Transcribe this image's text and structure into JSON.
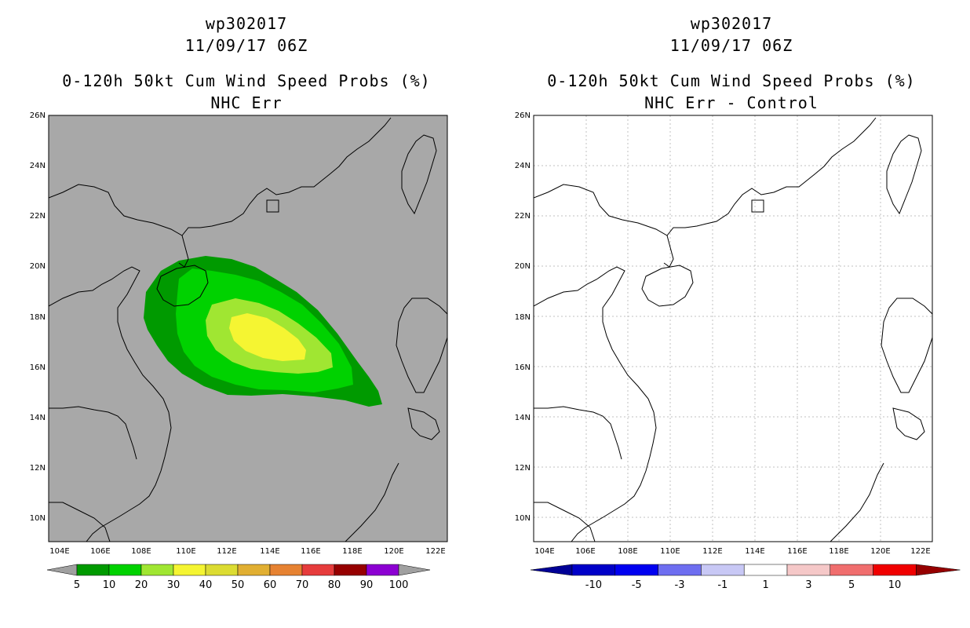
{
  "left_panel": {
    "title_lines": [
      "wp302017",
      "11/09/17 06Z",
      "0-120h 50kt Cum Wind Speed Probs (%)",
      "NHC Err"
    ],
    "lat_labels": [
      "26N",
      "24N",
      "22N",
      "20N",
      "18N",
      "16N",
      "14N",
      "12N",
      "10N"
    ],
    "lon_labels": [
      "104E",
      "106E",
      "108E",
      "110E",
      "112E",
      "114E",
      "116E",
      "118E",
      "120E",
      "122E"
    ],
    "colorbar": {
      "colors": [
        "#009a00",
        "#00d200",
        "#a0e632",
        "#f5f532",
        "#dcdc32",
        "#e1af32",
        "#e68232",
        "#e63c3c",
        "#960000",
        "#8c00d2"
      ],
      "end_color": "#a0a0a0",
      "labels": [
        "5",
        "10",
        "20",
        "30",
        "40",
        "50",
        "60",
        "70",
        "80",
        "90",
        "100"
      ]
    },
    "background_color": "#a8a8a8"
  },
  "right_panel": {
    "title_lines": [
      "wp302017",
      "11/09/17 06Z",
      "0-120h 50kt Cum Wind Speed Probs (%)",
      "NHC Err - Control"
    ],
    "lat_labels": [
      "26N",
      "24N",
      "22N",
      "20N",
      "18N",
      "16N",
      "14N",
      "12N",
      "10N"
    ],
    "lon_labels": [
      "104E",
      "106E",
      "108E",
      "110E",
      "112E",
      "114E",
      "116E",
      "118E",
      "120E",
      "122E"
    ],
    "colorbar": {
      "colors": [
        "#0000c8",
        "#0000f0",
        "#6e6ef0",
        "#c8c8f5",
        "#ffffff",
        "#f5c8c8",
        "#f06e6e",
        "#f00000"
      ],
      "left_end_color": "#000096",
      "right_end_color": "#960000",
      "labels": [
        "-10",
        "-5",
        "-3",
        "-1",
        "1",
        "3",
        "5",
        "10"
      ]
    },
    "background_color": "#ffffff"
  }
}
